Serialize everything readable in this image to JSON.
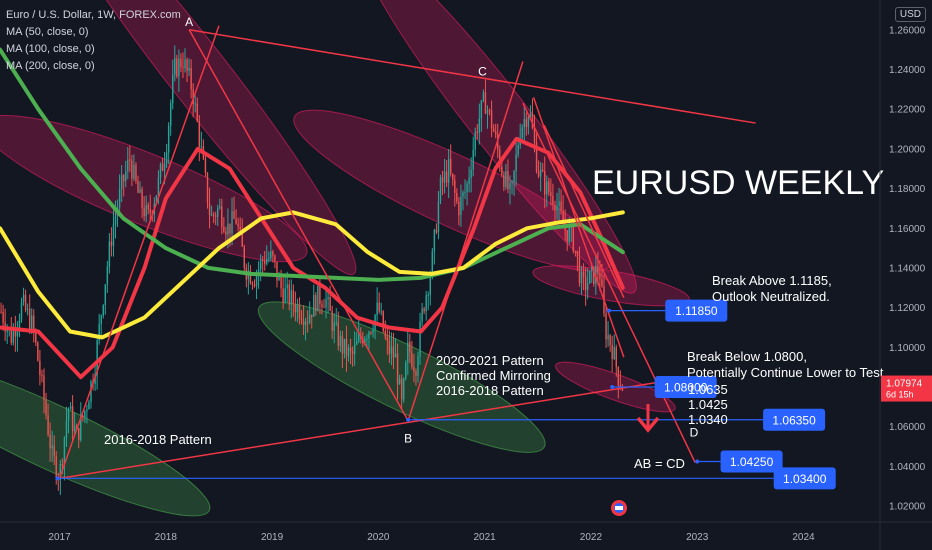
{
  "header": {
    "title": "Euro / U.S. Dollar, 1W, FOREX.com",
    "indicators": [
      "MA (50, close, 0)",
      "MA (100, close, 0)",
      "MA (200, close, 0)"
    ],
    "currency_button": "USD"
  },
  "chart_data": {
    "type": "candlestick",
    "title": "EURUSD WEEKLY",
    "xlabel": "",
    "ylabel": "",
    "x_ticks": [
      "2017",
      "2018",
      "2019",
      "2020",
      "2021",
      "2022",
      "2023",
      "2024"
    ],
    "y_ticks": [
      "1.26000",
      "1.24000",
      "1.22000",
      "1.20000",
      "1.18000",
      "1.16000",
      "1.14000",
      "1.12000",
      "1.10000",
      "1.08000",
      "1.06000",
      "1.04000",
      "1.02000"
    ],
    "ylim": [
      1.012,
      1.275
    ],
    "xlim": [
      2016.44,
      2024.72
    ],
    "grid": false,
    "legend": "top-left",
    "current_price": {
      "label": "1.07974",
      "countdown": "6d 15h",
      "value": 1.07974,
      "color": "#f23645"
    },
    "price_path": [
      [
        2016.45,
        1.118
      ],
      [
        2016.55,
        1.105
      ],
      [
        2016.65,
        1.122
      ],
      [
        2016.75,
        1.11
      ],
      [
        2016.85,
        1.075
      ],
      [
        2016.93,
        1.045
      ],
      [
        2017.0,
        1.035
      ],
      [
        2017.08,
        1.07
      ],
      [
        2017.16,
        1.055
      ],
      [
        2017.25,
        1.07
      ],
      [
        2017.33,
        1.09
      ],
      [
        2017.42,
        1.13
      ],
      [
        2017.5,
        1.16
      ],
      [
        2017.58,
        1.18
      ],
      [
        2017.66,
        1.195
      ],
      [
        2017.75,
        1.175
      ],
      [
        2017.83,
        1.165
      ],
      [
        2017.92,
        1.18
      ],
      [
        2018.0,
        1.2
      ],
      [
        2018.08,
        1.24
      ],
      [
        2018.16,
        1.245
      ],
      [
        2018.25,
        1.23
      ],
      [
        2018.33,
        1.2
      ],
      [
        2018.42,
        1.165
      ],
      [
        2018.5,
        1.17
      ],
      [
        2018.58,
        1.16
      ],
      [
        2018.66,
        1.165
      ],
      [
        2018.75,
        1.14
      ],
      [
        2018.83,
        1.135
      ],
      [
        2018.92,
        1.145
      ],
      [
        2019.0,
        1.145
      ],
      [
        2019.08,
        1.13
      ],
      [
        2019.16,
        1.125
      ],
      [
        2019.25,
        1.12
      ],
      [
        2019.33,
        1.115
      ],
      [
        2019.42,
        1.125
      ],
      [
        2019.5,
        1.125
      ],
      [
        2019.58,
        1.11
      ],
      [
        2019.66,
        1.1
      ],
      [
        2019.75,
        1.095
      ],
      [
        2019.83,
        1.105
      ],
      [
        2019.92,
        1.11
      ],
      [
        2020.0,
        1.12
      ],
      [
        2020.08,
        1.1
      ],
      [
        2020.16,
        1.095
      ],
      [
        2020.22,
        1.07
      ],
      [
        2020.28,
        1.1
      ],
      [
        2020.35,
        1.09
      ],
      [
        2020.42,
        1.12
      ],
      [
        2020.5,
        1.14
      ],
      [
        2020.58,
        1.18
      ],
      [
        2020.66,
        1.19
      ],
      [
        2020.75,
        1.17
      ],
      [
        2020.83,
        1.18
      ],
      [
        2020.92,
        1.21
      ],
      [
        2021.0,
        1.225
      ],
      [
        2021.08,
        1.21
      ],
      [
        2021.16,
        1.19
      ],
      [
        2021.25,
        1.175
      ],
      [
        2021.33,
        1.21
      ],
      [
        2021.42,
        1.22
      ],
      [
        2021.5,
        1.19
      ],
      [
        2021.58,
        1.18
      ],
      [
        2021.66,
        1.175
      ],
      [
        2021.75,
        1.16
      ],
      [
        2021.83,
        1.155
      ],
      [
        2021.92,
        1.13
      ],
      [
        2022.0,
        1.135
      ],
      [
        2022.08,
        1.14
      ],
      [
        2022.13,
        1.11
      ],
      [
        2022.2,
        1.1
      ],
      [
        2022.26,
        1.085
      ],
      [
        2022.3,
        1.08
      ]
    ],
    "moving_averages": [
      {
        "name": "MA (50, close, 0)",
        "color": "#f23645",
        "points": [
          [
            2016.44,
            1.11
          ],
          [
            2016.8,
            1.108
          ],
          [
            2017.2,
            1.085
          ],
          [
            2017.5,
            1.1
          ],
          [
            2017.8,
            1.14
          ],
          [
            2018.0,
            1.175
          ],
          [
            2018.3,
            1.2
          ],
          [
            2018.6,
            1.19
          ],
          [
            2018.9,
            1.165
          ],
          [
            2019.2,
            1.14
          ],
          [
            2019.5,
            1.13
          ],
          [
            2019.8,
            1.115
          ],
          [
            2020.1,
            1.11
          ],
          [
            2020.4,
            1.108
          ],
          [
            2020.6,
            1.12
          ],
          [
            2020.9,
            1.16
          ],
          [
            2021.1,
            1.19
          ],
          [
            2021.3,
            1.205
          ],
          [
            2021.6,
            1.198
          ],
          [
            2021.9,
            1.178
          ],
          [
            2022.1,
            1.155
          ],
          [
            2022.3,
            1.13
          ]
        ]
      },
      {
        "name": "MA (100, close, 0)",
        "color": "#4caf50",
        "points": [
          [
            2016.44,
            1.25
          ],
          [
            2016.8,
            1.22
          ],
          [
            2017.2,
            1.19
          ],
          [
            2017.6,
            1.165
          ],
          [
            2018.0,
            1.15
          ],
          [
            2018.4,
            1.14
          ],
          [
            2018.8,
            1.137
          ],
          [
            2019.2,
            1.136
          ],
          [
            2019.6,
            1.135
          ],
          [
            2020.0,
            1.134
          ],
          [
            2020.4,
            1.135
          ],
          [
            2020.8,
            1.14
          ],
          [
            2021.2,
            1.15
          ],
          [
            2021.6,
            1.16
          ],
          [
            2021.9,
            1.162
          ],
          [
            2022.1,
            1.155
          ],
          [
            2022.3,
            1.148
          ]
        ]
      },
      {
        "name": "MA (200, close, 0)",
        "color": "#ffeb3b",
        "points": [
          [
            2016.44,
            1.16
          ],
          [
            2016.8,
            1.128
          ],
          [
            2017.1,
            1.108
          ],
          [
            2017.4,
            1.105
          ],
          [
            2017.8,
            1.115
          ],
          [
            2018.1,
            1.13
          ],
          [
            2018.5,
            1.15
          ],
          [
            2018.9,
            1.165
          ],
          [
            2019.2,
            1.168
          ],
          [
            2019.6,
            1.162
          ],
          [
            2019.9,
            1.148
          ],
          [
            2020.2,
            1.138
          ],
          [
            2020.5,
            1.137
          ],
          [
            2020.8,
            1.14
          ],
          [
            2021.1,
            1.152
          ],
          [
            2021.4,
            1.16
          ],
          [
            2021.7,
            1.163
          ],
          [
            2022.0,
            1.165
          ],
          [
            2022.3,
            1.168
          ]
        ]
      }
    ],
    "point_labels": [
      {
        "text": "A",
        "x": 2018.22,
        "y": 1.262
      },
      {
        "text": "B",
        "x": 2020.28,
        "y": 1.052
      },
      {
        "text": "C",
        "x": 2020.98,
        "y": 1.237
      },
      {
        "text": "D",
        "x": 2022.97,
        "y": 1.055
      }
    ],
    "annotations": {
      "main_title": "EURUSD WEEKLY",
      "pattern_2016_2018": "2016-2018 Pattern",
      "pattern_2020_2021_lines": [
        "2020-2021 Pattern",
        "Confirmed Mirroring",
        "2016-2018 Pattern"
      ],
      "break_above_lines": [
        "Break Above 1.1185,",
        "Outlook Neutralized."
      ],
      "break_below_lines": [
        "Break Below 1.0800,",
        "Potentially Continue Lower to Test"
      ],
      "targets_list": [
        "1.0635",
        "1.0425",
        "1.0340"
      ],
      "ab_cd": "AB = CD"
    },
    "levels": [
      {
        "label": "1.11850",
        "value": 1.1185,
        "x_start": 2022.17,
        "x_label": 2022.7
      },
      {
        "label": "1.08000",
        "value": 1.08,
        "x_start": 2022.2,
        "x_label": 2022.6
      },
      {
        "label": "1.06350",
        "value": 1.0635,
        "x_start": 2020.28,
        "x_label": 2023.62
      },
      {
        "label": "1.04250",
        "value": 1.0425,
        "x_start": 2023.0,
        "x_label": 2023.22
      },
      {
        "label": "1.03400",
        "value": 1.034,
        "x_start": 2016.98,
        "x_label": 2023.72
      }
    ],
    "trendlines": [
      {
        "from": [
          2018.22,
          1.26
        ],
        "to": [
          2023.55,
          1.213
        ]
      },
      {
        "from": [
          2017.0,
          1.034
        ],
        "to": [
          2022.82,
          1.084
        ]
      },
      {
        "from": [
          2017.0,
          1.034
        ],
        "to": [
          2018.5,
          1.262
        ]
      },
      {
        "from": [
          2018.22,
          1.26
        ],
        "to": [
          2020.28,
          1.063
        ]
      },
      {
        "from": [
          2020.28,
          1.063
        ],
        "to": [
          2021.36,
          1.244
        ]
      },
      {
        "from": [
          2021.36,
          1.223
        ],
        "to": [
          2022.98,
          1.042
        ]
      },
      {
        "from": [
          2021.46,
          1.226
        ],
        "to": [
          2022.31,
          1.095
        ]
      },
      {
        "from": [
          2021.56,
          1.212
        ],
        "to": [
          2022.31,
          1.125
        ]
      }
    ],
    "highlight_ellipses": [
      {
        "x": 2018.3,
        "y": 1.238,
        "rx": 0.28,
        "ry": 0.032,
        "rot": 38,
        "fill": "#e91e63"
      },
      {
        "x": 2017.8,
        "y": 1.18,
        "rx": 0.33,
        "ry": 0.022,
        "rot": 68,
        "fill": "#e91e63"
      },
      {
        "x": 2016.92,
        "y": 1.055,
        "rx": 0.3,
        "ry": 0.022,
        "rot": 65,
        "fill": "#4caf50"
      },
      {
        "x": 2020.7,
        "y": 1.179,
        "rx": 0.33,
        "ry": 0.022,
        "rot": 65,
        "fill": "#e91e63"
      },
      {
        "x": 2021.12,
        "y": 1.216,
        "rx": 0.28,
        "ry": 0.028,
        "rot": 38,
        "fill": "#e91e63"
      },
      {
        "x": 2020.22,
        "y": 1.085,
        "rx": 0.3,
        "ry": 0.02,
        "rot": 64,
        "fill": "#4caf50"
      },
      {
        "x": 2022.19,
        "y": 1.131,
        "rx": 0.14,
        "ry": 0.01,
        "rot": 80,
        "fill": "#e91e63"
      },
      {
        "x": 2022.23,
        "y": 1.08,
        "rx": 0.12,
        "ry": 0.008,
        "rot": 70,
        "fill": "#e91e63"
      }
    ],
    "colors": {
      "background": "#131722",
      "up": "#26a69a",
      "down": "#ef5350",
      "trendline": "#f23645",
      "level_line": "#2962ff",
      "level_box": "#2962ff",
      "arrow": "#f23645"
    }
  }
}
